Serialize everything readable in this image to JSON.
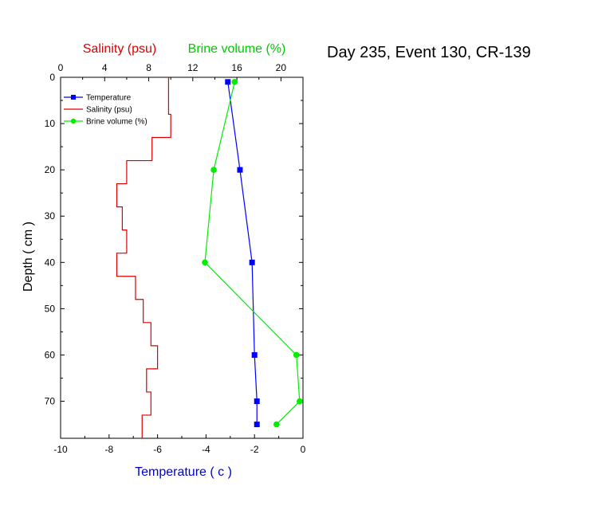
{
  "chart_data": {
    "type": "line",
    "title": "Day 235, Event 130, CR-139",
    "y_axis": {
      "label": "Depth ( cm )",
      "range": [
        0,
        78
      ],
      "inverted": true,
      "ticks": [
        0,
        10,
        20,
        30,
        40,
        50,
        60,
        70
      ],
      "tick_labels": [
        "0",
        "10",
        "20",
        "30",
        "40",
        "50",
        "60",
        "70"
      ]
    },
    "x_axis_bottom": {
      "label": "Temperature ( c )",
      "label_color": "#0000cc",
      "range": [
        -10,
        0
      ],
      "ticks": [
        -10,
        -8,
        -6,
        -4,
        -2,
        0
      ],
      "tick_labels": [
        "-10",
        "-8",
        "-6",
        "-4",
        "-2",
        "0"
      ]
    },
    "x_axis_top": {
      "label_salinity": "Salinity (psu)",
      "label_salinity_color": "#dd0000",
      "label_brine": "Brine volume (%)",
      "label_brine_color": "#00cc00",
      "range": [
        0,
        22
      ],
      "ticks": [
        0,
        4,
        8,
        12,
        16,
        20
      ],
      "tick_labels": [
        "0",
        "4",
        "8",
        "12",
        "16",
        "20"
      ]
    },
    "legend": {
      "position": "top-left",
      "entries": [
        {
          "label": "Temperature",
          "color": "#0000ff",
          "marker": "square"
        },
        {
          "label": "Salinity (psu)",
          "color": "#dd0000",
          "marker": "none"
        },
        {
          "label": "Brine volume (%)",
          "color": "#00ee00",
          "marker": "circle"
        }
      ]
    },
    "series": [
      {
        "id": "temperature",
        "axis": "bottom",
        "color": "#0000ff",
        "marker": "square",
        "points": [
          {
            "x": -3.1,
            "depth": 1
          },
          {
            "x": -2.6,
            "depth": 20
          },
          {
            "x": -2.1,
            "depth": 40
          },
          {
            "x": -2.0,
            "depth": 60
          },
          {
            "x": -1.9,
            "depth": 70
          },
          {
            "x": -1.9,
            "depth": 75
          }
        ]
      },
      {
        "id": "salinity",
        "axis": "top",
        "color": "#dd0000",
        "style": "step",
        "steps": [
          {
            "value": 9.8,
            "from": 0,
            "to": 8
          },
          {
            "value": 10.0,
            "from": 8,
            "to": 13
          },
          {
            "value": 8.3,
            "from": 13,
            "to": 18
          },
          {
            "value": 6.0,
            "from": 18,
            "to": 23
          },
          {
            "value": 5.1,
            "from": 23,
            "to": 28
          },
          {
            "value": 5.6,
            "from": 28,
            "to": 33
          },
          {
            "value": 6.0,
            "from": 33,
            "to": 38
          },
          {
            "value": 5.1,
            "from": 38,
            "to": 43
          },
          {
            "value": 6.8,
            "from": 43,
            "to": 48
          },
          {
            "value": 7.5,
            "from": 48,
            "to": 53
          },
          {
            "value": 8.2,
            "from": 53,
            "to": 58
          },
          {
            "value": 8.8,
            "from": 58,
            "to": 63
          },
          {
            "value": 7.8,
            "from": 63,
            "to": 68
          },
          {
            "value": 8.2,
            "from": 68,
            "to": 73
          },
          {
            "value": 7.4,
            "from": 73,
            "to": 78
          }
        ]
      },
      {
        "id": "brine",
        "axis": "top",
        "color": "#00ee00",
        "marker": "circle",
        "points": [
          {
            "x": 15.8,
            "depth": 1
          },
          {
            "x": 13.9,
            "depth": 20
          },
          {
            "x": 13.1,
            "depth": 40
          },
          {
            "x": 21.4,
            "depth": 60
          },
          {
            "x": 21.7,
            "depth": 70
          },
          {
            "x": 19.6,
            "depth": 75
          }
        ]
      }
    ]
  }
}
